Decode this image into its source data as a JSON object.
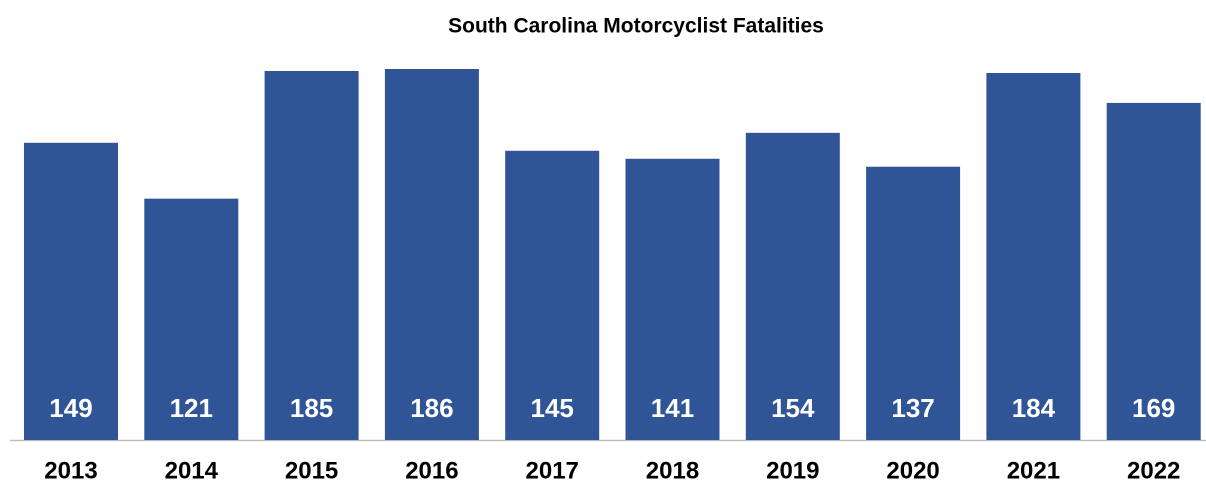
{
  "chart_data": {
    "type": "bar",
    "title": "South Carolina Motorcyclist Fatalities",
    "categories": [
      "2013",
      "2014",
      "2015",
      "2016",
      "2017",
      "2018",
      "2019",
      "2020",
      "2021",
      "2022"
    ],
    "values": [
      149,
      121,
      185,
      186,
      145,
      141,
      154,
      137,
      184,
      169
    ],
    "color": "#2f5597"
  }
}
